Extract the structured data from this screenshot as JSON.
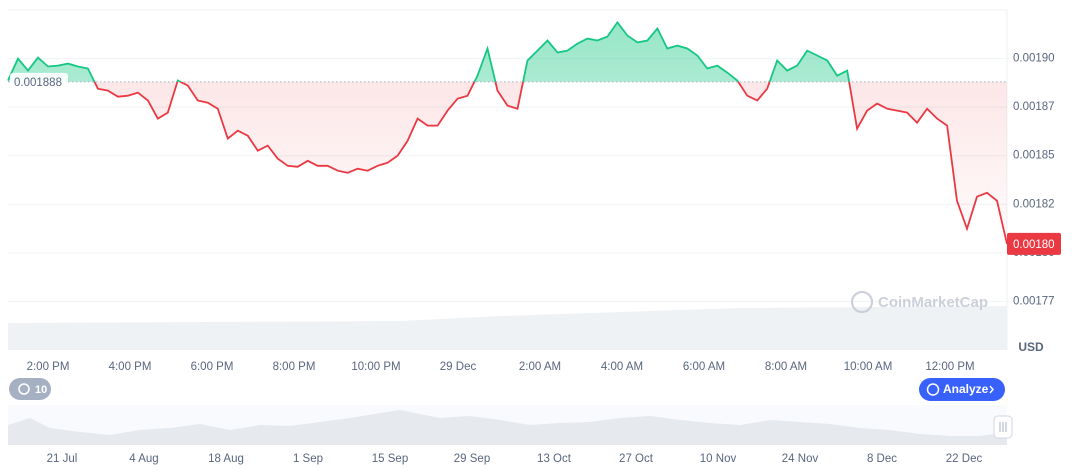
{
  "chart_data": {
    "type": "line",
    "values": [
      0.0018887,
      0.0019,
      0.0018938,
      0.0019005,
      0.0018959,
      0.0018964,
      0.0018974,
      0.0018959,
      0.0018949,
      0.0018845,
      0.0018835,
      0.0018804,
      0.0018809,
      0.0018825,
      0.0018784,
      0.0018691,
      0.0018722,
      0.0018887,
      0.0018861,
      0.0018784,
      0.0018773,
      0.0018742,
      0.0018588,
      0.0018629,
      0.0018603,
      0.0018526,
      0.0018552,
      0.0018485,
      0.0018448,
      0.0018443,
      0.0018474,
      0.0018448,
      0.0018448,
      0.0018423,
      0.0018412,
      0.0018433,
      0.0018423,
      0.0018448,
      0.0018464,
      0.00185,
      0.0018577,
      0.0018691,
      0.0018655,
      0.0018655,
      0.0018732,
      0.0018794,
      0.0018809,
      0.0018912,
      0.0019052,
      0.0018835,
      0.0018758,
      0.0018742,
      0.001899,
      0.0019041,
      0.0019093,
      0.0019031,
      0.0019041,
      0.0019077,
      0.0019103,
      0.0019093,
      0.0019113,
      0.0019186,
      0.0019119,
      0.0019083,
      0.0019093,
      0.0019155,
      0.0019052,
      0.0019067,
      0.0019052,
      0.0019016,
      0.0018949,
      0.0018964,
      0.0018928,
      0.0018887,
      0.0018809,
      0.0018784,
      0.0018845,
      0.001899,
      0.0018938,
      0.0018964,
      0.0019041,
      0.0019016,
      0.001899,
      0.0018912,
      0.0018938,
      0.0018639,
      0.0018732,
      0.0018768,
      0.0018742,
      0.0018732,
      0.0018722,
      0.001867,
      0.0018742,
      0.0018691,
      0.0018655,
      0.0018268,
      0.0018124,
      0.0018289,
      0.0018309,
      0.0018268,
      0.0018046
    ],
    "up_color": "#16c784",
    "down_color": "#ea3943",
    "baseline": {
      "value": 0.001888,
      "label": "0.001888"
    },
    "last_value_label": "0.00180",
    "ylim": [
      0.00175,
      0.001925
    ],
    "yticks": [
      {
        "value": 0.0019,
        "label": "0.00190"
      },
      {
        "value": 0.001875,
        "label": "0.00187"
      },
      {
        "value": 0.00185,
        "label": "0.00185"
      },
      {
        "value": 0.001825,
        "label": "0.00182"
      },
      {
        "value": 0.0018,
        "label": "0.00180"
      },
      {
        "value": 0.001775,
        "label": "0.00177"
      }
    ],
    "xtick_labels": [
      "2:00 PM",
      "4:00 PM",
      "6:00 PM",
      "8:00 PM",
      "10:00 PM",
      "29 Dec",
      "2:00 AM",
      "4:00 AM",
      "6:00 AM",
      "8:00 AM",
      "10:00 AM",
      "12:00 PM"
    ],
    "grid": true,
    "currency": "USD",
    "watermark": "CoinMarketCap",
    "navigator_labels": [
      "21 Jul",
      "4 Aug",
      "18 Aug",
      "1 Sep",
      "15 Sep",
      "29 Sep",
      "13 Oct",
      "27 Oct",
      "10 Nov",
      "24 Nov",
      "8 Dec",
      "22 Dec"
    ]
  },
  "controls": {
    "history_count": 10,
    "analyze": "Analyze"
  }
}
